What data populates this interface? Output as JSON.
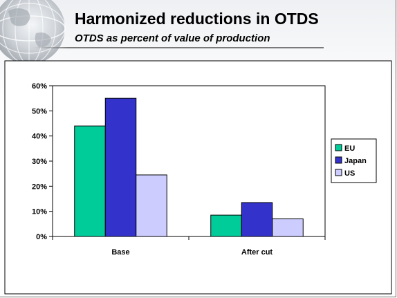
{
  "slide": {
    "title": "Harmonized reductions in OTDS",
    "subtitle": "OTDS as percent of value of production"
  },
  "chart_data": {
    "type": "bar",
    "categories": [
      "Base",
      "After cut"
    ],
    "series": [
      {
        "name": "EU",
        "color": "#00cc99",
        "values": [
          44,
          8.5
        ]
      },
      {
        "name": "Japan",
        "color": "#3333cc",
        "values": [
          55,
          13.5
        ]
      },
      {
        "name": "US",
        "color": "#ccccff",
        "values": [
          24.5,
          7
        ]
      }
    ],
    "ylim": [
      0,
      60
    ],
    "yticks": [
      0,
      10,
      20,
      30,
      40,
      50,
      60
    ],
    "ytick_labels": [
      "0%",
      "10%",
      "20%",
      "30%",
      "40%",
      "50%",
      "60%"
    ],
    "grid": false,
    "legend_position": "right"
  }
}
